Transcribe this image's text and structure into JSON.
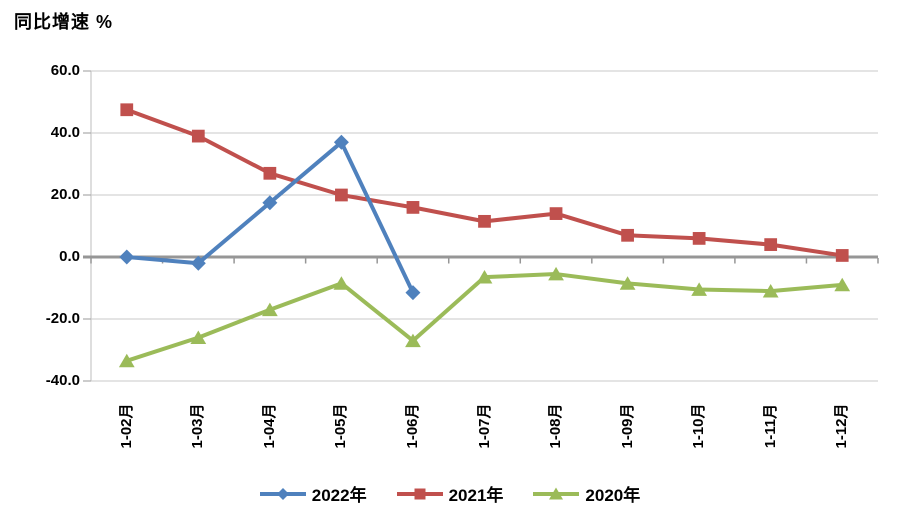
{
  "chart_data": {
    "type": "line",
    "title": "同比增速 %",
    "categories": [
      "1-02月",
      "1-03月",
      "1-04月",
      "1-05月",
      "1-06月",
      "1-07月",
      "1-08月",
      "1-09月",
      "1-10月",
      "1-11月",
      "1-12月"
    ],
    "series": [
      {
        "name": "2022年",
        "color": "#4F81BD",
        "marker": "diamond",
        "values": [
          0.0,
          -2.0,
          17.5,
          37.0,
          -11.5,
          null,
          null,
          null,
          null,
          null,
          null
        ]
      },
      {
        "name": "2021年",
        "color": "#C0504D",
        "marker": "square",
        "values": [
          47.5,
          39.0,
          27.0,
          20.0,
          16.0,
          11.5,
          14.0,
          7.0,
          6.0,
          4.0,
          0.5
        ]
      },
      {
        "name": "2020年",
        "color": "#9BBB59",
        "marker": "triangle",
        "values": [
          -33.5,
          -26.0,
          -17.0,
          -8.5,
          -27.0,
          -6.5,
          -5.5,
          -8.5,
          -10.5,
          -11.0,
          -9.0
        ]
      }
    ],
    "ylabel": "同比增速 %",
    "xlabel": "",
    "ylim": [
      -40,
      60
    ],
    "ytick_step": 20,
    "yticks": [
      "60.0",
      "40.0",
      "20.0",
      "0.0",
      "-20.0",
      "-40.0"
    ],
    "grid": true,
    "legend_position": "bottom",
    "colors": {
      "gridline": "#C9C9C9",
      "zero_axis": "#969696",
      "axis_line": "#C9C9C9",
      "text": "#000000",
      "background": "#FFFFFF"
    }
  }
}
